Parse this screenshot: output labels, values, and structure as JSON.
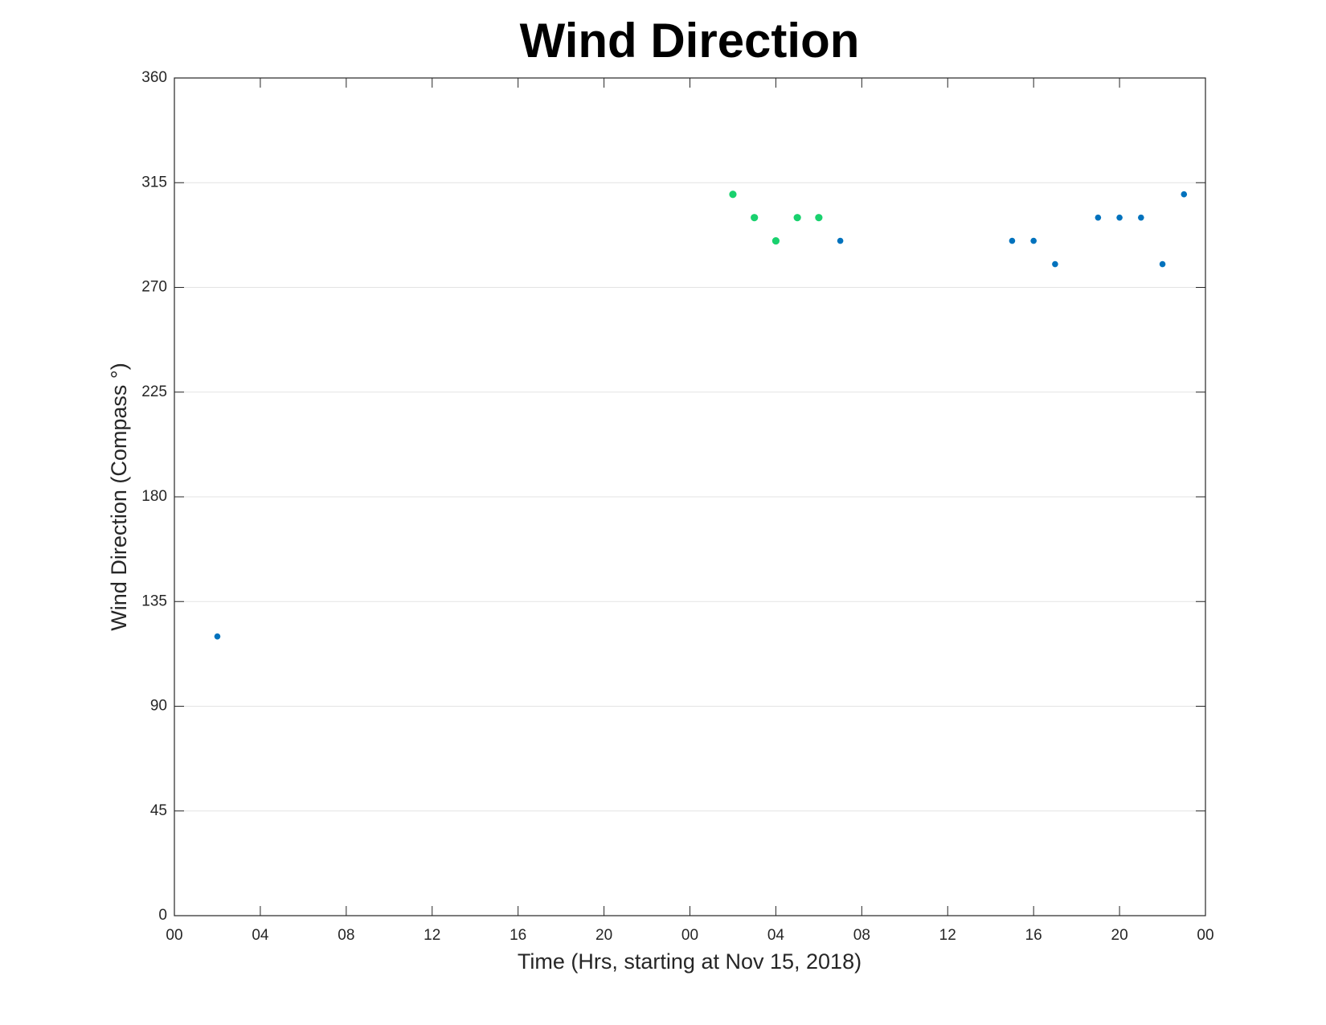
{
  "chart_data": {
    "type": "scatter",
    "title": "Wind Direction",
    "xlabel": "Time (Hrs, starting at Nov 15, 2018)",
    "ylabel": "Wind Direction (Compass °)",
    "xlim": [
      0,
      48
    ],
    "xticks": [
      {
        "value": 0,
        "label": "00"
      },
      {
        "value": 4,
        "label": "04"
      },
      {
        "value": 8,
        "label": "08"
      },
      12,
      16,
      20,
      {
        "value": 24,
        "label": "00"
      },
      {
        "value": 28,
        "label": "04"
      },
      {
        "value": 32,
        "label": "08"
      },
      {
        "value": 36,
        "label": "12"
      },
      {
        "value": 40,
        "label": "16"
      },
      {
        "value": 44,
        "label": "20"
      },
      {
        "value": 48,
        "label": "00"
      }
    ],
    "ylim": [
      0,
      360
    ],
    "yticks": [
      0,
      45,
      90,
      135,
      180,
      225,
      270,
      315,
      360
    ],
    "grid": "y",
    "series": [
      {
        "color": "#0072bd",
        "x": [
          2,
          31,
          39,
          40,
          41,
          43,
          44,
          45,
          46,
          47
        ],
        "values": [
          120,
          290,
          290,
          290,
          280,
          300,
          300,
          300,
          280,
          310
        ]
      },
      {
        "color": "#19d16e",
        "x": [
          26,
          27,
          28,
          29,
          30
        ],
        "values": [
          310,
          300,
          290,
          300,
          300
        ]
      }
    ]
  }
}
